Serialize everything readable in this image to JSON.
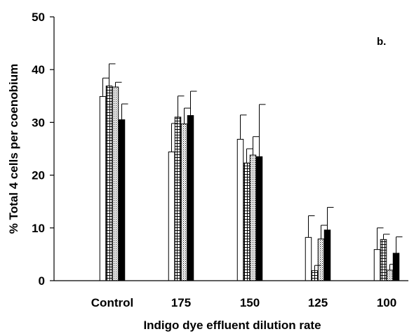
{
  "chart_data": {
    "type": "bar",
    "panel_label": "b.",
    "xlabel": "Indigo dye effluent dilution rate",
    "ylabel": "% Total 4 cells per coenobium",
    "ylim": [
      0,
      50
    ],
    "yticks": [
      "0",
      "10",
      "20",
      "30",
      "40",
      "50"
    ],
    "categories": [
      "Control",
      "175",
      "150",
      "125",
      "100"
    ],
    "error_bars": "upper",
    "series": [
      {
        "fill": "white-open",
        "values": [
          34.9,
          24.4,
          26.8,
          8.2,
          5.9
        ],
        "errors": [
          3.5,
          5.4,
          4.6,
          4.1,
          4.1
        ]
      },
      {
        "fill": "grid-hatch",
        "values": [
          36.9,
          31.0,
          22.3,
          1.9,
          7.8
        ],
        "errors": [
          4.2,
          4.0,
          2.7,
          1.0,
          1.0
        ]
      },
      {
        "fill": "dot-stipple",
        "values": [
          36.7,
          29.7,
          23.8,
          7.9,
          2.0
        ],
        "errors": [
          0.9,
          3.0,
          3.5,
          2.6,
          1.1
        ]
      },
      {
        "fill": "solid-black",
        "values": [
          30.5,
          31.3,
          23.5,
          9.6,
          5.2
        ],
        "errors": [
          3.0,
          4.6,
          9.9,
          4.3,
          3.1
        ]
      }
    ]
  }
}
